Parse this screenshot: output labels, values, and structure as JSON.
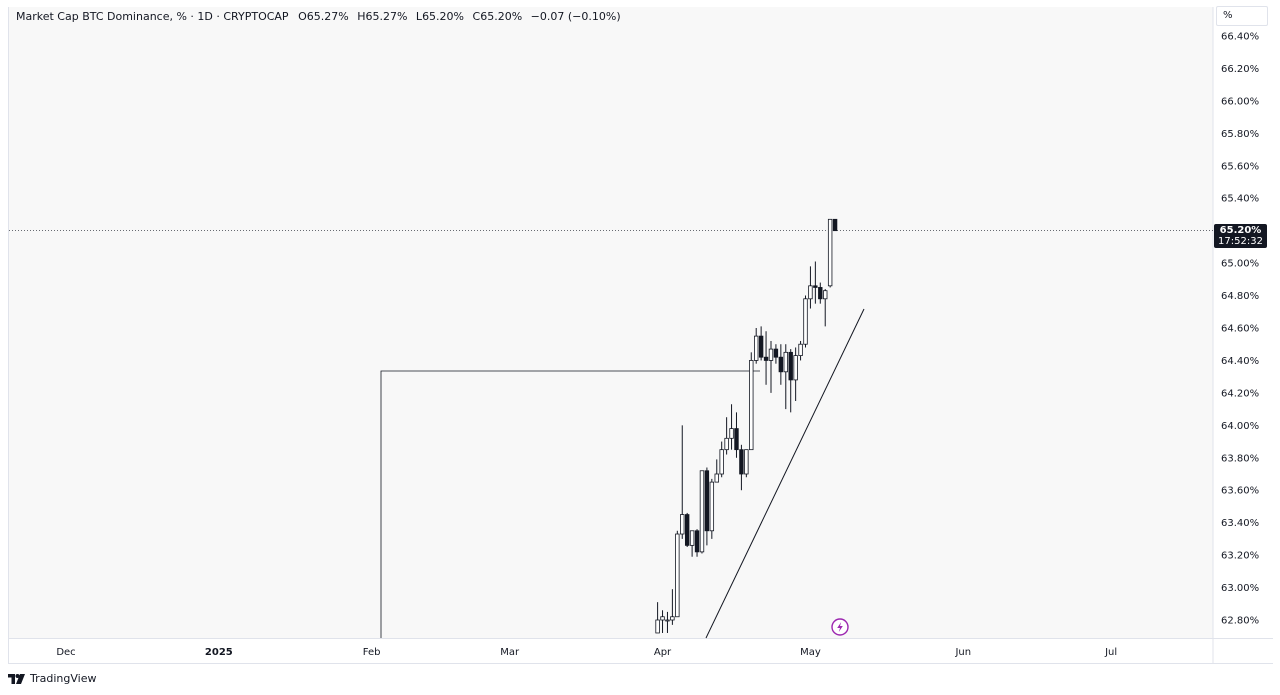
{
  "legend": {
    "title": "Market Cap BTC Dominance, % · 1D · CRYPTOCAP",
    "open_label": "O",
    "open": "65.27%",
    "high_label": "H",
    "high": "65.27%",
    "low_label": "L",
    "low": "65.20%",
    "close_label": "C",
    "close": "65.20%",
    "change": "−0.07 (−0.10%)"
  },
  "unit_button": "%",
  "last_price": {
    "value": "65.20%",
    "countdown": "17:52:32"
  },
  "footer": {
    "brand": "TradingView",
    "logo_icon": "tradingview-logo-icon"
  },
  "colors": {
    "background": "#f8f8f8",
    "candle": "#131722",
    "up_fill": "#ffffff",
    "down_fill": "#131722",
    "grid_border": "#e0e3eb",
    "event_icon": "#9c27b0"
  },
  "chart_data": {
    "type": "candlestick",
    "symbol": "Market Cap BTC Dominance, %",
    "interval": "1D",
    "exchange": "CRYPTOCAP",
    "x_ticks": [
      "Dec",
      "2025",
      "Feb",
      "Mar",
      "Apr",
      "May",
      "Jun",
      "Jul"
    ],
    "y_ticks": [
      "62.80%",
      "63.00%",
      "63.20%",
      "63.40%",
      "63.60%",
      "63.80%",
      "64.00%",
      "64.20%",
      "64.40%",
      "64.60%",
      "64.80%",
      "65.00%",
      "65.20%",
      "65.40%",
      "65.60%",
      "65.80%",
      "66.00%",
      "66.20%",
      "66.40%"
    ],
    "ylim": [
      62.72,
      66.44
    ],
    "grid": false,
    "last_price": 65.2,
    "candles": [
      {
        "date": "2025-03-31",
        "o": 62.72,
        "h": 62.91,
        "l": 62.72,
        "c": 62.8
      },
      {
        "date": "2025-04-01",
        "o": 62.8,
        "h": 62.86,
        "l": 62.72,
        "c": 62.82
      },
      {
        "date": "2025-04-02",
        "o": 62.8,
        "h": 62.85,
        "l": 62.72,
        "c": 62.8
      },
      {
        "date": "2025-04-03",
        "o": 62.8,
        "h": 62.99,
        "l": 62.77,
        "c": 62.82
      },
      {
        "date": "2025-04-04",
        "o": 62.82,
        "h": 63.35,
        "l": 62.82,
        "c": 63.33
      },
      {
        "date": "2025-04-05",
        "o": 63.33,
        "h": 64.0,
        "l": 63.3,
        "c": 63.45
      },
      {
        "date": "2025-04-06",
        "o": 63.45,
        "h": 63.46,
        "l": 63.25,
        "c": 63.26
      },
      {
        "date": "2025-04-07",
        "o": 63.26,
        "h": 63.34,
        "l": 63.19,
        "c": 63.35
      },
      {
        "date": "2025-04-08",
        "o": 63.35,
        "h": 63.36,
        "l": 63.19,
        "c": 63.22
      },
      {
        "date": "2025-04-09",
        "o": 63.22,
        "h": 63.72,
        "l": 63.21,
        "c": 63.72
      },
      {
        "date": "2025-04-10",
        "o": 63.72,
        "h": 63.74,
        "l": 63.26,
        "c": 63.35
      },
      {
        "date": "2025-04-11",
        "o": 63.35,
        "h": 63.67,
        "l": 63.3,
        "c": 63.65
      },
      {
        "date": "2025-04-12",
        "o": 63.65,
        "h": 63.79,
        "l": 63.65,
        "c": 63.7
      },
      {
        "date": "2025-04-13",
        "o": 63.7,
        "h": 63.9,
        "l": 63.68,
        "c": 63.85
      },
      {
        "date": "2025-04-14",
        "o": 63.85,
        "h": 64.05,
        "l": 63.82,
        "c": 63.92
      },
      {
        "date": "2025-04-15",
        "o": 63.92,
        "h": 64.13,
        "l": 63.85,
        "c": 63.98
      },
      {
        "date": "2025-04-16",
        "o": 63.98,
        "h": 64.08,
        "l": 63.8,
        "c": 63.85
      },
      {
        "date": "2025-04-17",
        "o": 63.85,
        "h": 63.88,
        "l": 63.6,
        "c": 63.7
      },
      {
        "date": "2025-04-18",
        "o": 63.7,
        "h": 63.85,
        "l": 63.68,
        "c": 63.85
      },
      {
        "date": "2025-04-19",
        "o": 63.85,
        "h": 64.45,
        "l": 63.85,
        "c": 64.4
      },
      {
        "date": "2025-04-20",
        "o": 64.4,
        "h": 64.6,
        "l": 64.38,
        "c": 64.55
      },
      {
        "date": "2025-04-21",
        "o": 64.55,
        "h": 64.61,
        "l": 64.4,
        "c": 64.42
      },
      {
        "date": "2025-04-22",
        "o": 64.42,
        "h": 64.58,
        "l": 64.25,
        "c": 64.4
      },
      {
        "date": "2025-04-23",
        "o": 64.4,
        "h": 64.52,
        "l": 64.2,
        "c": 64.47
      },
      {
        "date": "2025-04-24",
        "o": 64.47,
        "h": 64.5,
        "l": 64.38,
        "c": 64.42
      },
      {
        "date": "2025-04-25",
        "o": 64.42,
        "h": 64.5,
        "l": 64.25,
        "c": 64.33
      },
      {
        "date": "2025-04-26",
        "o": 64.33,
        "h": 64.5,
        "l": 64.1,
        "c": 64.45
      },
      {
        "date": "2025-04-27",
        "o": 64.45,
        "h": 64.47,
        "l": 64.08,
        "c": 64.28
      },
      {
        "date": "2025-04-28",
        "o": 64.28,
        "h": 64.48,
        "l": 64.15,
        "c": 64.43
      },
      {
        "date": "2025-04-29",
        "o": 64.43,
        "h": 64.52,
        "l": 64.4,
        "c": 64.5
      },
      {
        "date": "2025-04-30",
        "o": 64.5,
        "h": 64.8,
        "l": 64.48,
        "c": 64.78
      },
      {
        "date": "2025-05-01",
        "o": 64.78,
        "h": 64.98,
        "l": 64.72,
        "c": 64.86
      },
      {
        "date": "2025-05-02",
        "o": 64.86,
        "h": 65.01,
        "l": 64.75,
        "c": 64.85
      },
      {
        "date": "2025-05-03",
        "o": 64.85,
        "h": 64.88,
        "l": 64.75,
        "c": 64.78
      },
      {
        "date": "2025-05-04",
        "o": 64.78,
        "h": 64.84,
        "l": 64.61,
        "c": 64.83
      },
      {
        "date": "2025-05-05",
        "o": 64.86,
        "h": 65.27,
        "l": 64.85,
        "c": 65.27
      },
      {
        "date": "2025-05-06",
        "o": 65.27,
        "h": 65.27,
        "l": 65.2,
        "c": 65.2
      }
    ]
  }
}
